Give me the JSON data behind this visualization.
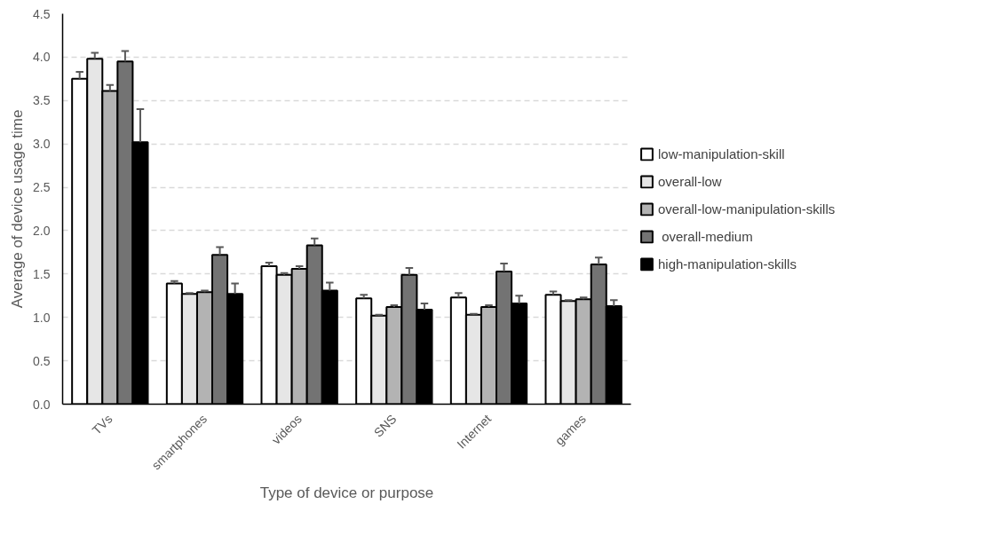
{
  "chart_data": {
    "type": "bar",
    "xlabel": "Type of device or purpose",
    "ylabel": "Average of device usage time",
    "categories": [
      "TVs",
      "smartphones",
      "videos",
      "SNS",
      "Internet",
      "games"
    ],
    "ylim": [
      0,
      4.5
    ],
    "yticks": [
      {
        "value": 0,
        "label": "0.0"
      },
      {
        "value": 0.5,
        "label": "0.5"
      },
      {
        "value": 1,
        "label": "1.0"
      },
      {
        "value": 1.5,
        "label": "1.5"
      },
      {
        "value": 2,
        "label": "2.0"
      },
      {
        "value": 2.5,
        "label": "2.5"
      },
      {
        "value": 3,
        "label": "3.0"
      },
      {
        "value": 3.5,
        "label": "3.5"
      },
      {
        "value": 4,
        "label": "4.0"
      },
      {
        "value": 4.5,
        "label": "4.5"
      }
    ],
    "grid": "y",
    "legend": "right",
    "series": [
      {
        "name": "low-manipulation-skill",
        "color": "#ffffff",
        "values": [
          3.75,
          1.39,
          1.59,
          1.22,
          1.23,
          1.26
        ],
        "errors": [
          [
            3.75,
            3.83
          ],
          [
            1.39,
            1.42
          ],
          [
            1.59,
            1.63
          ],
          [
            1.22,
            1.26
          ],
          [
            1.23,
            1.28
          ],
          [
            1.26,
            1.3
          ]
        ]
      },
      {
        "name": "overall-low",
        "color": "#e6e6e6",
        "values": [
          3.98,
          1.27,
          1.49,
          1.02,
          1.03,
          1.19
        ],
        "errors": [
          [
            3.98,
            4.05
          ],
          [
            1.27,
            1.28
          ],
          [
            1.49,
            1.51
          ],
          [
            1.02,
            1.03
          ],
          [
            1.03,
            1.04
          ],
          [
            1.19,
            1.2
          ]
        ]
      },
      {
        "name": "overall-low-manipulation-skills",
        "color": "#b3b3b3",
        "values": [
          3.61,
          1.29,
          1.56,
          1.12,
          1.12,
          1.21
        ],
        "errors": [
          [
            3.61,
            3.68
          ],
          [
            1.29,
            1.31
          ],
          [
            1.56,
            1.59
          ],
          [
            1.12,
            1.14
          ],
          [
            1.12,
            1.14
          ],
          [
            1.21,
            1.23
          ]
        ]
      },
      {
        "name": " overall-medium",
        "color": "#737373",
        "values": [
          3.95,
          1.72,
          1.83,
          1.49,
          1.53,
          1.61
        ],
        "errors": [
          [
            3.95,
            4.07
          ],
          [
            1.72,
            1.81
          ],
          [
            1.83,
            1.91
          ],
          [
            1.49,
            1.57
          ],
          [
            1.53,
            1.62
          ],
          [
            1.61,
            1.69
          ]
        ]
      },
      {
        "name": "high-manipulation-skills",
        "color": "#000000",
        "values": [
          3.02,
          1.27,
          1.31,
          1.09,
          1.16,
          1.13
        ],
        "errors": [
          [
            3.02,
            3.4
          ],
          [
            1.27,
            1.39
          ],
          [
            1.31,
            1.4
          ],
          [
            1.09,
            1.16
          ],
          [
            1.16,
            1.25
          ],
          [
            1.13,
            1.2
          ]
        ]
      }
    ]
  }
}
